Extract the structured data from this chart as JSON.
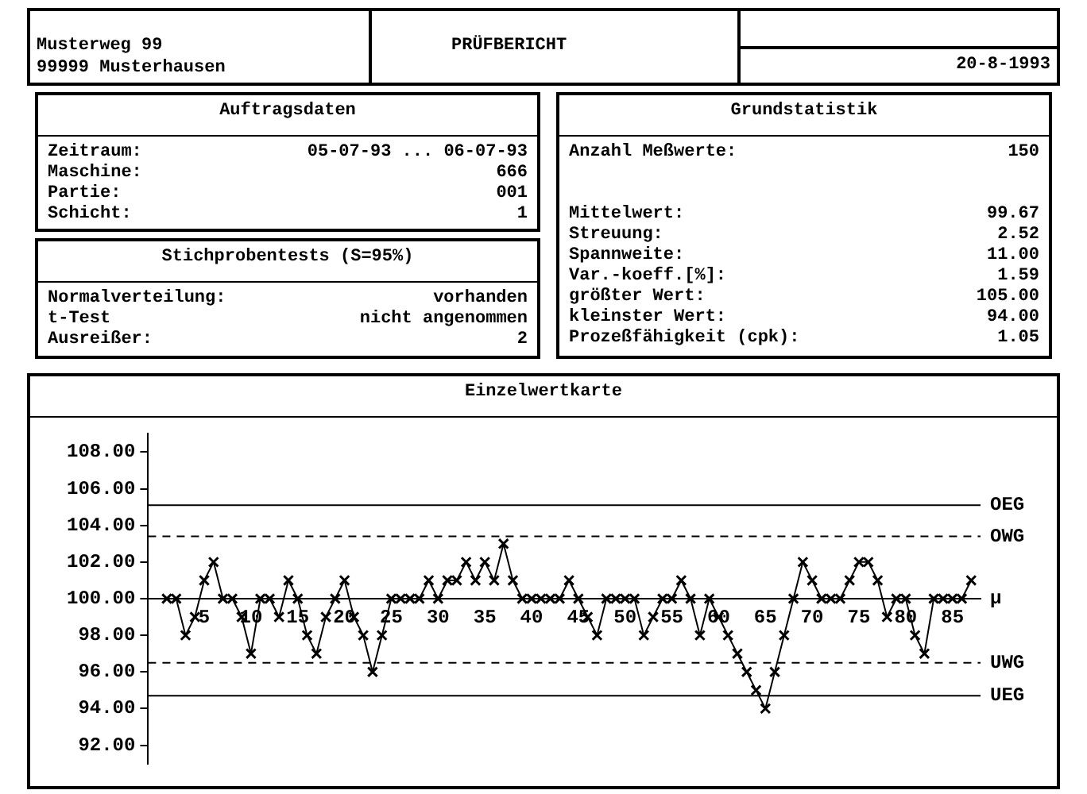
{
  "chart_data": [
    {
      "type": "other",
      "title": "PRÜFBERICHT",
      "annotations": [
        "Musterweg 99",
        "99999 Musterhausen",
        "20-8-1993"
      ]
    },
    {
      "type": "other",
      "title": "Auftragsdaten",
      "annotations": [
        "Zeitraum:",
        "05-07-93 ... 06-07-93",
        "Maschine:",
        "666",
        "Partie:",
        "001",
        "Schicht:",
        "1"
      ]
    },
    {
      "type": "other",
      "title": "Stichprobentests (S=95%)",
      "annotations": [
        "Normalverteilung:",
        "vorhanden",
        "t-Test",
        "nicht angenommen",
        "Ausreißer:",
        "2"
      ]
    },
    {
      "type": "other",
      "title": "Grundstatistik",
      "annotations": [
        "Anzahl Meßwerte:",
        "150",
        "Mittelwert:",
        "99.67",
        "Streuung:",
        "2.52",
        "Spannweite:",
        "11.00",
        "Var.-koeff.[%]:",
        "1.59",
        "größter Wert:",
        "105.00",
        "kleinster Wert:",
        "94.00",
        "Prozeßfähigkeit (cpk):",
        "1.05"
      ]
    },
    {
      "type": "line",
      "title": "Einzelwertkarte",
      "marker": "cross",
      "grid": false,
      "legend": false,
      "x": [
        1,
        2,
        3,
        4,
        5,
        6,
        7,
        8,
        9,
        10,
        11,
        12,
        13,
        14,
        15,
        16,
        17,
        18,
        19,
        20,
        21,
        22,
        23,
        24,
        25,
        26,
        27,
        28,
        29,
        30,
        31,
        32,
        33,
        34,
        35,
        36,
        37,
        38,
        39,
        40,
        41,
        42,
        43,
        44,
        45,
        46,
        47,
        48,
        49,
        50,
        51,
        52,
        53,
        54,
        55,
        56,
        57,
        58,
        59,
        60,
        61,
        62,
        63,
        64,
        65,
        66,
        67,
        68,
        69,
        70,
        71,
        72,
        73,
        74,
        75,
        76,
        77,
        78,
        79,
        80,
        81,
        82,
        83,
        84,
        85,
        86,
        87
      ],
      "values": [
        100,
        100,
        98,
        99,
        101,
        102,
        100,
        100,
        99,
        97,
        100,
        100,
        99,
        101,
        100,
        98,
        97,
        99,
        100,
        101,
        99,
        98,
        96,
        98,
        100,
        100,
        100,
        100,
        101,
        100,
        101,
        101,
        102,
        101,
        102,
        101,
        103,
        101,
        100,
        100,
        100,
        100,
        100,
        101,
        100,
        99,
        98,
        100,
        100,
        100,
        100,
        98,
        99,
        100,
        100,
        101,
        100,
        98,
        100,
        99,
        98,
        97,
        96,
        95,
        94,
        96,
        98,
        100,
        102,
        101,
        100,
        100,
        100,
        101,
        102,
        102,
        101,
        99,
        100,
        100,
        98,
        97,
        100,
        100,
        100,
        100,
        101
      ],
      "color": "#000000",
      "xlim": [
        -1,
        88
      ],
      "xticks": [
        5,
        10,
        15,
        20,
        25,
        30,
        35,
        40,
        45,
        50,
        55,
        60,
        65,
        70,
        75,
        80,
        85
      ],
      "ylim": [
        91,
        109
      ],
      "yticks": [
        {
          "value": 92,
          "label": "92.00"
        },
        {
          "value": 94,
          "label": "94.00"
        },
        {
          "value": 96,
          "label": "96.00"
        },
        {
          "value": 98,
          "label": "98.00"
        },
        {
          "value": 100,
          "label": "100.00"
        },
        {
          "value": 102,
          "label": "102.00"
        },
        {
          "value": 104,
          "label": "104.00"
        },
        {
          "value": 106,
          "label": "106.00"
        },
        {
          "value": 108,
          "label": "108.00"
        }
      ],
      "ref_lines": [
        {
          "axis": "y",
          "value": 105.1,
          "label": "OEG",
          "color": "#000000",
          "line_style": "solid"
        },
        {
          "axis": "y",
          "value": 103.4,
          "label": "OWG",
          "color": "#000000",
          "line_style": "dashed"
        },
        {
          "axis": "y",
          "value": 100,
          "label": "μ",
          "color": "#000000",
          "line_style": "solid"
        },
        {
          "axis": "y",
          "value": 96.5,
          "label": "UWG",
          "color": "#000000",
          "line_style": "dashed"
        },
        {
          "axis": "y",
          "value": 94.7,
          "label": "UEG",
          "color": "#000000",
          "line_style": "solid"
        }
      ]
    }
  ]
}
